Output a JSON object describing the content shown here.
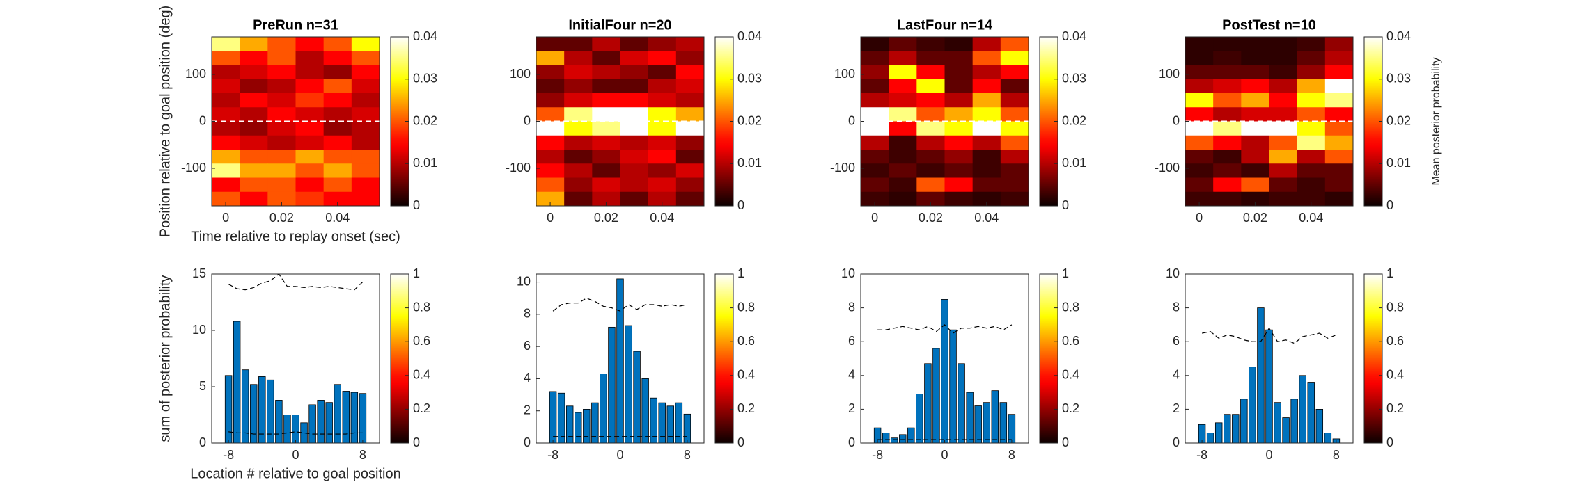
{
  "chart_data": [
    {
      "type": "heatmap",
      "title": "PreRun n=31",
      "ylabel": "Position relative to goal position (deg)",
      "xlabel": "Time relative to replay onset (sec)",
      "x": [
        0,
        0.01,
        0.02,
        0.03,
        0.04,
        0.05
      ],
      "y": [
        165,
        135,
        105,
        75,
        45,
        15,
        -15,
        -45,
        -75,
        -105,
        -135,
        -165
      ],
      "z": [
        [
          0.035,
          0.025,
          0.02,
          0.015,
          0.02,
          0.03
        ],
        [
          0.02,
          0.015,
          0.02,
          0.01,
          0.015,
          0.02
        ],
        [
          0.01,
          0.012,
          0.015,
          0.01,
          0.008,
          0.015
        ],
        [
          0.012,
          0.008,
          0.01,
          0.015,
          0.02,
          0.012
        ],
        [
          0.01,
          0.015,
          0.012,
          0.018,
          0.015,
          0.01
        ],
        [
          0.012,
          0.01,
          0.015,
          0.012,
          0.01,
          0.012
        ],
        [
          0.01,
          0.008,
          0.012,
          0.015,
          0.008,
          0.01
        ],
        [
          0.015,
          0.012,
          0.01,
          0.012,
          0.015,
          0.01
        ],
        [
          0.025,
          0.02,
          0.02,
          0.025,
          0.02,
          0.02
        ],
        [
          0.035,
          0.025,
          0.025,
          0.02,
          0.025,
          0.02
        ],
        [
          0.015,
          0.02,
          0.02,
          0.015,
          0.02,
          0.015
        ],
        [
          0.02,
          0.015,
          0.02,
          0.018,
          0.015,
          0.015
        ]
      ],
      "xlim": [
        -0.005,
        0.055
      ],
      "ylim": [
        -180,
        180
      ],
      "xticks": [
        0,
        0.02,
        0.04
      ],
      "yticks": [
        -100,
        0,
        100
      ],
      "hline": 0,
      "hline_color": "#ffffff",
      "clim": [
        0,
        0.04
      ],
      "cticks": [
        0,
        0.01,
        0.02,
        0.03,
        0.04
      ],
      "colormap": "hot"
    },
    {
      "type": "heatmap",
      "title": "InitialFour n=20",
      "x": [
        0,
        0.01,
        0.02,
        0.03,
        0.04,
        0.05
      ],
      "y": [
        165,
        135,
        105,
        75,
        45,
        15,
        -15,
        -45,
        -75,
        -105,
        -135,
        -165
      ],
      "z": [
        [
          0.005,
          0.005,
          0.01,
          0.005,
          0.008,
          0.01
        ],
        [
          0.025,
          0.01,
          0.005,
          0.012,
          0.015,
          0.008
        ],
        [
          0.008,
          0.012,
          0.01,
          0.008,
          0.005,
          0.015
        ],
        [
          0.005,
          0.008,
          0.005,
          0.005,
          0.01,
          0.012
        ],
        [
          0.008,
          0.012,
          0.015,
          0.015,
          0.012,
          0.01
        ],
        [
          0.02,
          0.035,
          0.04,
          0.04,
          0.03,
          0.025
        ],
        [
          0.04,
          0.03,
          0.035,
          0.04,
          0.03,
          0.04
        ],
        [
          0.015,
          0.01,
          0.012,
          0.01,
          0.012,
          0.008
        ],
        [
          0.01,
          0.005,
          0.008,
          0.012,
          0.015,
          0.005
        ],
        [
          0.015,
          0.01,
          0.005,
          0.01,
          0.008,
          0.012
        ],
        [
          0.02,
          0.008,
          0.012,
          0.01,
          0.012,
          0.008
        ],
        [
          0.025,
          0.005,
          0.01,
          0.005,
          0.01,
          0.005
        ]
      ],
      "xlim": [
        -0.005,
        0.055
      ],
      "ylim": [
        -180,
        180
      ],
      "xticks": [
        0,
        0.02,
        0.04
      ],
      "yticks": [
        -100,
        0,
        100
      ],
      "hline": 0,
      "hline_color": "#ffffff",
      "clim": [
        0,
        0.04
      ],
      "cticks": [
        0,
        0.01,
        0.02,
        0.03,
        0.04
      ],
      "colormap": "hot"
    },
    {
      "type": "heatmap",
      "title": "LastFour n=14",
      "x": [
        0,
        0.01,
        0.02,
        0.03,
        0.04,
        0.05
      ],
      "y": [
        165,
        135,
        105,
        75,
        45,
        15,
        -15,
        -45,
        -75,
        -105,
        -135,
        -165
      ],
      "z": [
        [
          0.002,
          0.005,
          0.003,
          0.002,
          0.01,
          0.02
        ],
        [
          0.005,
          0.01,
          0.005,
          0.005,
          0.02,
          0.03
        ],
        [
          0.008,
          0.03,
          0.015,
          0.005,
          0.01,
          0.015
        ],
        [
          0.005,
          0.015,
          0.03,
          0.005,
          0.015,
          0.005
        ],
        [
          0.01,
          0.012,
          0.015,
          0.01,
          0.025,
          0.01
        ],
        [
          0.04,
          0.035,
          0.02,
          0.025,
          0.03,
          0.02
        ],
        [
          0.04,
          0.015,
          0.035,
          0.03,
          0.04,
          0.03
        ],
        [
          0.01,
          0.003,
          0.01,
          0.015,
          0.01,
          0.02
        ],
        [
          0.005,
          0.003,
          0.005,
          0.008,
          0.003,
          0.01
        ],
        [
          0.003,
          0.005,
          0.003,
          0.005,
          0.003,
          0.005
        ],
        [
          0.005,
          0.003,
          0.02,
          0.015,
          0.005,
          0.005
        ],
        [
          0.003,
          0.002,
          0.005,
          0.003,
          0.002,
          0.003
        ]
      ],
      "xlim": [
        -0.005,
        0.055
      ],
      "ylim": [
        -180,
        180
      ],
      "xticks": [
        0,
        0.02,
        0.04
      ],
      "yticks": [
        -100,
        0,
        100
      ],
      "hline": 0,
      "hline_color": "#ffffff",
      "clim": [
        0,
        0.04
      ],
      "cticks": [
        0,
        0.01,
        0.02,
        0.03,
        0.04
      ],
      "colormap": "hot"
    },
    {
      "type": "heatmap",
      "title": "PostTest n=10",
      "colorbar_label": "Mean posterior probability",
      "x": [
        0,
        0.01,
        0.02,
        0.03,
        0.04,
        0.05
      ],
      "y": [
        165,
        135,
        105,
        75,
        45,
        15,
        -15,
        -45,
        -75,
        -105,
        -135,
        -165
      ],
      "z": [
        [
          0.002,
          0.002,
          0.002,
          0.002,
          0.003,
          0.008
        ],
        [
          0.002,
          0.003,
          0.002,
          0.002,
          0.005,
          0.01
        ],
        [
          0.005,
          0.005,
          0.005,
          0.003,
          0.008,
          0.015
        ],
        [
          0.01,
          0.012,
          0.015,
          0.01,
          0.025,
          0.04
        ],
        [
          0.03,
          0.02,
          0.025,
          0.015,
          0.03,
          0.035
        ],
        [
          0.015,
          0.01,
          0.012,
          0.012,
          0.02,
          0.015
        ],
        [
          0.04,
          0.035,
          0.04,
          0.04,
          0.03,
          0.02
        ],
        [
          0.02,
          0.015,
          0.01,
          0.02,
          0.035,
          0.025
        ],
        [
          0.005,
          0.003,
          0.01,
          0.025,
          0.01,
          0.02
        ],
        [
          0.003,
          0.005,
          0.003,
          0.01,
          0.005,
          0.005
        ],
        [
          0.005,
          0.015,
          0.02,
          0.005,
          0.003,
          0.005
        ],
        [
          0.003,
          0.003,
          0.002,
          0.003,
          0.003,
          0.002
        ]
      ],
      "xlim": [
        -0.005,
        0.055
      ],
      "ylim": [
        -180,
        180
      ],
      "xticks": [
        0,
        0.02,
        0.04
      ],
      "yticks": [
        -100,
        0,
        100
      ],
      "hline": 0,
      "hline_color": "#ffffff",
      "clim": [
        0,
        0.04
      ],
      "cticks": [
        0,
        0.01,
        0.02,
        0.03,
        0.04
      ],
      "colormap": "hot"
    },
    {
      "type": "bar",
      "ylabel": "sum of posterior probability",
      "xlabel": "Location # relative to goal position",
      "color": "#0072bd",
      "x": [
        -8,
        -7,
        -6,
        -5,
        -4,
        -3,
        -2,
        -1,
        0,
        1,
        2,
        3,
        4,
        5,
        6,
        7,
        8
      ],
      "values": [
        6,
        10.8,
        6.5,
        5.2,
        5.9,
        5.6,
        3.8,
        2.5,
        2.5,
        1.8,
        3.4,
        3.8,
        3.6,
        5.2,
        4.6,
        4.5,
        4.4
      ],
      "lines": [
        {
          "color": "#000000",
          "values": [
            14.1,
            13.7,
            13.6,
            13.8,
            14.2,
            14.4,
            15,
            13.9,
            13.9,
            13.8,
            13.9,
            13.8,
            13.9,
            13.8,
            13.7,
            13.6,
            14.3
          ]
        },
        {
          "color": "#000000",
          "values": [
            1.0,
            0.9,
            0.9,
            0.8,
            0.8,
            0.8,
            0.8,
            0.9,
            1.0,
            0.9,
            0.8,
            0.8,
            0.8,
            0.8,
            0.8,
            0.9,
            0.9
          ]
        }
      ],
      "xlim": [
        -10,
        10
      ],
      "ylim": [
        0,
        15
      ],
      "xticks": [
        -8,
        0,
        8
      ],
      "yticks": [
        0,
        5,
        10,
        15
      ],
      "clim": [
        0,
        1
      ],
      "cticks": [
        0,
        0.2,
        0.4,
        0.6,
        0.8,
        1
      ],
      "colormap": "hot"
    },
    {
      "type": "bar",
      "color": "#0072bd",
      "x": [
        -8,
        -7,
        -6,
        -5,
        -4,
        -3,
        -2,
        -1,
        0,
        1,
        2,
        3,
        4,
        5,
        6,
        7,
        8
      ],
      "values": [
        3.2,
        3.1,
        2.3,
        1.9,
        2.1,
        2.5,
        4.3,
        7.2,
        10.2,
        7.3,
        5.7,
        4.0,
        2.8,
        2.5,
        2.3,
        2.5,
        1.8
      ],
      "lines": [
        {
          "color": "#000000",
          "values": [
            8.2,
            8.6,
            8.7,
            8.7,
            9.0,
            8.8,
            8.5,
            8.4,
            8.2,
            8.6,
            8.3,
            8.6,
            8.6,
            8.5,
            8.6,
            8.5,
            8.6
          ]
        },
        {
          "color": "#000000",
          "values": [
            0.4,
            0.4,
            0.4,
            0.4,
            0.4,
            0.4,
            0.4,
            0.4,
            0.4,
            0.4,
            0.4,
            0.4,
            0.4,
            0.4,
            0.4,
            0.4,
            0.4
          ]
        }
      ],
      "xlim": [
        -10,
        10
      ],
      "ylim": [
        0,
        10.5
      ],
      "xticks": [
        -8,
        0,
        8
      ],
      "yticks": [
        0,
        2,
        4,
        6,
        8,
        10
      ],
      "clim": [
        0,
        1
      ],
      "cticks": [
        0,
        0.2,
        0.4,
        0.6,
        0.8,
        1
      ],
      "colormap": "hot"
    },
    {
      "type": "bar",
      "color": "#0072bd",
      "x": [
        -8,
        -7,
        -6,
        -5,
        -4,
        -3,
        -2,
        -1,
        0,
        1,
        2,
        3,
        4,
        5,
        6,
        7,
        8
      ],
      "values": [
        0.9,
        0.6,
        0.3,
        0.5,
        0.9,
        2.9,
        4.7,
        5.6,
        8.5,
        6.7,
        4.7,
        3.0,
        2.2,
        2.4,
        3.1,
        2.4,
        1.7
      ],
      "lines": [
        {
          "color": "#000000",
          "values": [
            6.7,
            6.7,
            6.8,
            6.9,
            6.8,
            6.7,
            6.9,
            6.6,
            7.0,
            6.5,
            6.8,
            6.8,
            6.9,
            6.8,
            6.9,
            6.7,
            7.0
          ]
        },
        {
          "color": "#000000",
          "values": [
            0.2,
            0.2,
            0.2,
            0.2,
            0.2,
            0.2,
            0.2,
            0.2,
            0.2,
            0.2,
            0.2,
            0.2,
            0.2,
            0.2,
            0.2,
            0.2,
            0.2
          ]
        }
      ],
      "xlim": [
        -10,
        10
      ],
      "ylim": [
        0,
        10
      ],
      "xticks": [
        -8,
        0,
        8
      ],
      "yticks": [
        0,
        2,
        4,
        6,
        8,
        10
      ],
      "clim": [
        0,
        1
      ],
      "cticks": [
        0,
        0.2,
        0.4,
        0.6,
        0.8,
        1
      ],
      "colormap": "hot"
    },
    {
      "type": "bar",
      "color": "#0072bd",
      "x": [
        -8,
        -7,
        -6,
        -5,
        -4,
        -3,
        -2,
        -1,
        0,
        1,
        2,
        3,
        4,
        5,
        6,
        7,
        8
      ],
      "values": [
        1.1,
        0.6,
        1.2,
        1.7,
        1.7,
        2.6,
        4.5,
        8.0,
        6.7,
        2.4,
        1.5,
        2.6,
        4.0,
        3.6,
        2.0,
        0.6,
        0.25
      ],
      "lines": [
        {
          "color": "#000000",
          "values": [
            6.5,
            6.6,
            6.2,
            6.4,
            6.3,
            6.1,
            6.0,
            6.0,
            6.8,
            6.0,
            6.1,
            5.9,
            6.3,
            6.4,
            6.5,
            6.2,
            6.4
          ]
        }
      ],
      "xlim": [
        -10,
        10
      ],
      "ylim": [
        0,
        10
      ],
      "xticks": [
        -8,
        0,
        8
      ],
      "yticks": [
        0,
        2,
        4,
        6,
        8,
        10
      ],
      "clim": [
        0,
        1
      ],
      "cticks": [
        0,
        0.2,
        0.4,
        0.6,
        0.8,
        1
      ],
      "colormap": "hot"
    }
  ]
}
